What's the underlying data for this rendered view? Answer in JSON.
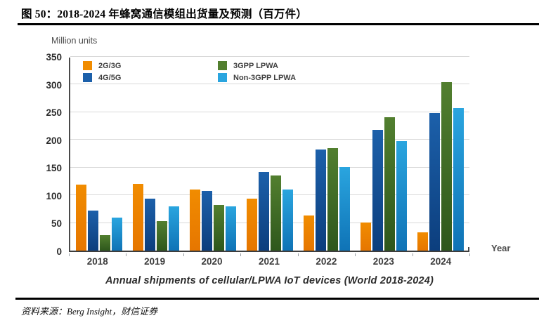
{
  "figure": {
    "title": "图 50：2018-2024 年蜂窝通信模组出货量及预测（百万件）",
    "source": "资料来源：Berg Insight，财信证券"
  },
  "chart_data": {
    "type": "bar",
    "title": "Annual shipments of cellular/LPWA IoT devices (World 2018-2024)",
    "ylabel": "Million units",
    "xlabel": "Year",
    "categories": [
      "2018",
      "2019",
      "2020",
      "2021",
      "2022",
      "2023",
      "2024"
    ],
    "series": [
      {
        "name": "2G/3G",
        "color": "#F18C00",
        "color_dark": "#E67600",
        "values": [
          119,
          120,
          110,
          93,
          63,
          50,
          33
        ]
      },
      {
        "name": "4G/5G",
        "color": "#1C60AA",
        "color_dark": "#0C3E7D",
        "values": [
          72,
          94,
          107,
          141,
          182,
          217,
          248
        ]
      },
      {
        "name": "3GPP LPWA",
        "color": "#527F2F",
        "color_dark": "#2E571C",
        "values": [
          28,
          53,
          82,
          135,
          185,
          240,
          303
        ]
      },
      {
        "name": "Non-3GPP LPWA",
        "color": "#2AA5DF",
        "color_dark": "#0F73B6",
        "values": [
          60,
          79,
          80,
          110,
          150,
          197,
          257
        ]
      }
    ],
    "ylim": [
      0,
      350
    ],
    "yticks": [
      0,
      50,
      100,
      150,
      200,
      250,
      300,
      350
    ],
    "grid": true,
    "legend_position": "top-left"
  }
}
